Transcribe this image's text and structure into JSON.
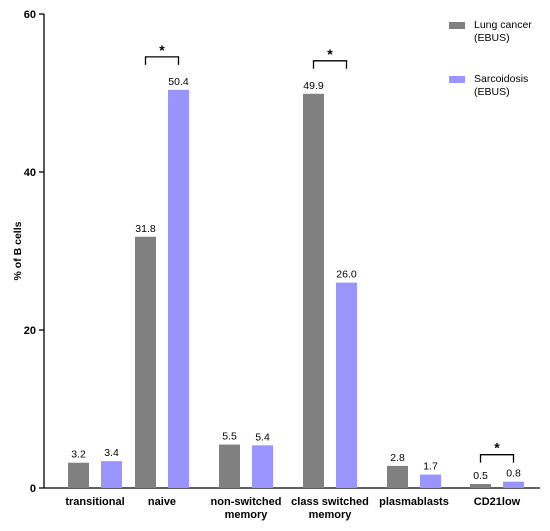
{
  "chart_data": {
    "type": "bar",
    "categories": [
      "transitional",
      "naive",
      "non-switched\nmemory",
      "class switched\nmemory",
      "plasmablasts",
      "CD21low"
    ],
    "series": [
      {
        "name": "Lung cancer\n(EBUS)",
        "color": "#808080",
        "values": [
          3.2,
          31.8,
          5.5,
          49.9,
          2.8,
          0.5
        ]
      },
      {
        "name": "Sarcoidosis\n(EBUS)",
        "color": "#9a94ff",
        "values": [
          3.4,
          50.4,
          5.4,
          26.0,
          1.7,
          0.8
        ]
      }
    ],
    "data_labels": [
      [
        "3.2",
        "31.8",
        "5.5",
        "49.9",
        "2.8",
        "0.5"
      ],
      [
        "3.4",
        "50.4",
        "5.4",
        "26.0",
        "1.7",
        "0.8"
      ]
    ],
    "ylabel": "% of B cells",
    "xlabel": "",
    "ylim": [
      0,
      60
    ],
    "yticks": [
      0,
      20,
      40,
      60
    ],
    "grid": false,
    "legend": "top-right",
    "significance": [
      {
        "category_index": 1,
        "label": "*"
      },
      {
        "category_index": 3,
        "label": "*"
      },
      {
        "category_index": 5,
        "label": "*"
      }
    ]
  }
}
